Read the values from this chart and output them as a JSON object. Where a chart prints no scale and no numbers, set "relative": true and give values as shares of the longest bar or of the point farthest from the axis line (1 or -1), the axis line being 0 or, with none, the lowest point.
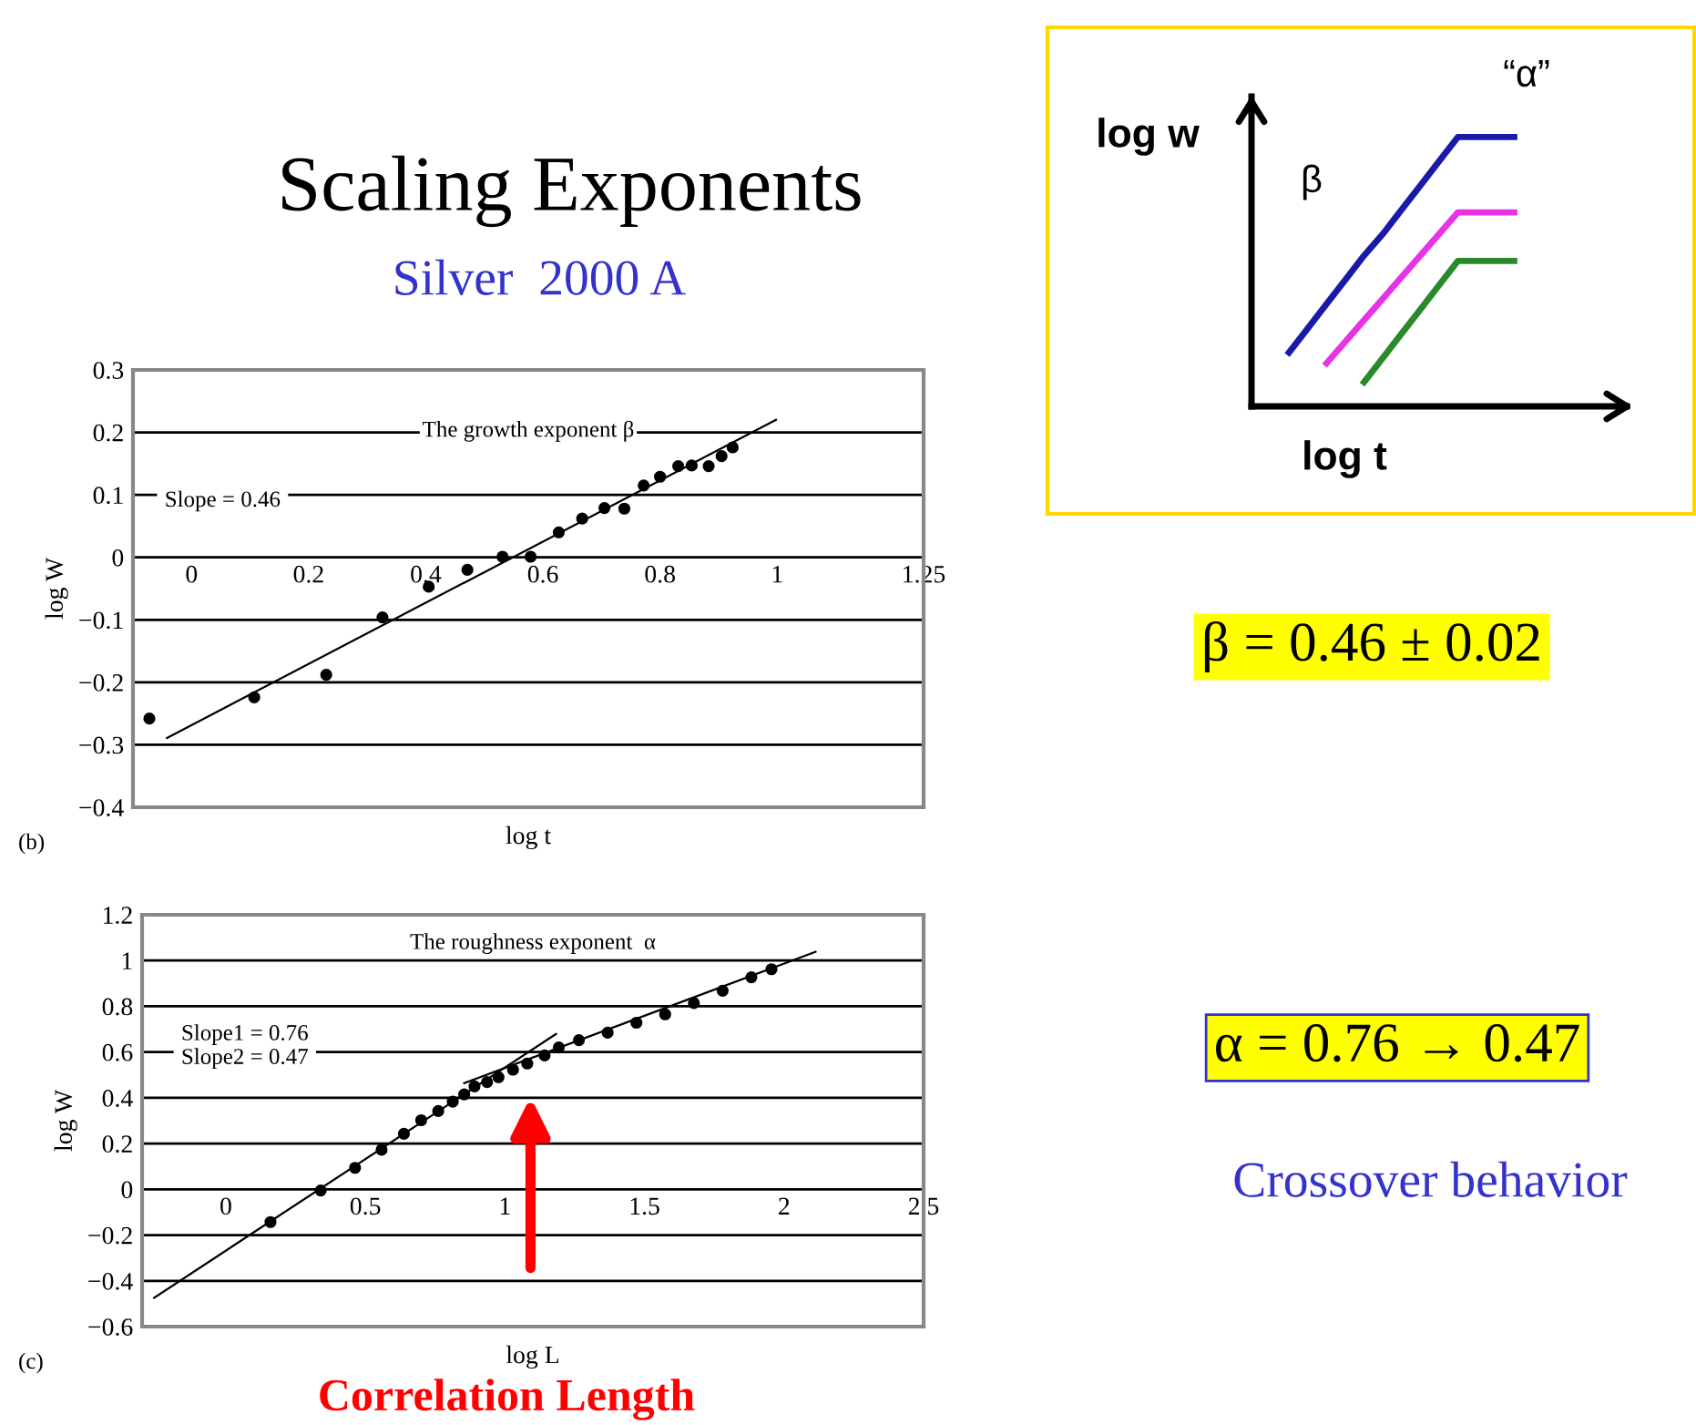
{
  "chart_data": [
    {
      "type": "scatter",
      "title": "Scaling Exponents",
      "subtitle": "Silver  2000 A",
      "xlabel": "log t",
      "ylabel": "log W",
      "annotations": [
        "(b)",
        "The growth exponent β",
        "Slope = 0.46",
        "β = 0.46 ± 0.02"
      ],
      "series": [
        {
          "type": "scatter",
          "color": "#000000",
          "marker": "circle",
          "x": [
            -0.072,
            0.107,
            0.23,
            0.326,
            0.405,
            0.471,
            0.531,
            0.579,
            0.627,
            0.667,
            0.705,
            0.739,
            0.772,
            0.8,
            0.831,
            0.854,
            0.883,
            0.905,
            0.924
          ],
          "values": [
            -0.258,
            -0.224,
            -0.188,
            -0.096,
            -0.047,
            -0.02,
            0.001,
            0.001,
            0.04,
            0.062,
            0.079,
            0.078,
            0.115,
            0.129,
            0.146,
            0.147,
            0.146,
            0.162,
            0.176
          ]
        },
        {
          "type": "line",
          "color": "#000000",
          "marker": "none",
          "line_style": "solid",
          "x": [
            -0.042,
            0.998
          ],
          "values": [
            -0.289,
            0.22
          ]
        }
      ],
      "xlim": [
        -0.1,
        1.25
      ],
      "ylim": [
        -0.4,
        0.3
      ],
      "xticks": [
        0,
        0.2,
        0.4,
        0.6,
        0.8,
        1,
        1.25
      ],
      "yticks": [
        0.3,
        0.2,
        0.1,
        0,
        {
          "value": -0.1,
          "label": "−0.1"
        },
        {
          "value": -0.2,
          "label": "−0.2"
        },
        {
          "value": -0.3,
          "label": "−0.3"
        },
        {
          "value": -0.4,
          "label": "−0.4"
        }
      ],
      "grid": "y"
    },
    {
      "type": "scatter",
      "xlabel": "log L",
      "ylabel": "log W",
      "annotations": [
        "(c)",
        "The roughness exponent  α",
        "Slope1 = 0.76\nSlope2 = 0.47",
        "α = 0.76 → 0.47",
        "Crossover behavior",
        "Correlation Length"
      ],
      "series": [
        {
          "type": "scatter",
          "color": "#000000",
          "marker": "circle",
          "x": [
            0.16,
            0.34,
            0.463,
            0.558,
            0.638,
            0.7,
            0.761,
            0.813,
            0.854,
            0.891,
            0.936,
            0.977,
            1.029,
            1.08,
            1.142,
            1.193,
            1.265,
            1.368,
            1.471,
            1.574,
            1.677,
            1.78,
            1.883,
            1.955
          ],
          "values": [
            -0.143,
            -0.005,
            0.094,
            0.173,
            0.243,
            0.302,
            0.342,
            0.383,
            0.415,
            0.45,
            0.469,
            0.49,
            0.523,
            0.55,
            0.585,
            0.62,
            0.652,
            0.685,
            0.728,
            0.765,
            0.814,
            0.868,
            0.927,
            0.962
          ]
        },
        {
          "type": "line",
          "color": "#000000",
          "marker": "none",
          "line_style": "solid",
          "x": [
            -0.257,
            1.183
          ],
          "values": [
            -0.474,
            0.679
          ]
        },
        {
          "type": "line",
          "color": "#000000",
          "marker": "none",
          "line_style": "solid",
          "x": [
            0.854,
            2.113
          ],
          "values": [
            0.464,
            1.038
          ]
        }
      ],
      "xlim": [
        -0.3,
        2.5
      ],
      "ylim": [
        -0.6,
        1.2
      ],
      "xticks": [
        0,
        0.5,
        1,
        1.5,
        2,
        2.5
      ],
      "yticks": [
        1.2,
        1,
        0.8,
        0.6,
        0.4,
        0.2,
        0,
        {
          "value": -0.2,
          "label": "−0.2"
        },
        {
          "value": -0.4,
          "label": "−0.4"
        },
        {
          "value": -0.6,
          "label": "−0.6"
        }
      ],
      "grid": "y"
    },
    {
      "type": "line",
      "relative": true,
      "xlabel": "log t",
      "ylabel": "log w",
      "annotations": [
        "β",
        "“α”"
      ],
      "categories": [
        null,
        null,
        null,
        null,
        null,
        null,
        null,
        null,
        null,
        null,
        null,
        null,
        null
      ],
      "series": [
        {
          "color": "#1a1aa8",
          "values": [
            0.2,
            0.29,
            0.38,
            0.47,
            0.56,
            0.64,
            0.73,
            0.82,
            0.91,
            1,
            1,
            1,
            1
          ]
        },
        {
          "color": "#e633e6",
          "values": [
            null,
            null,
            0.16,
            0.24,
            0.32,
            0.4,
            0.48,
            0.56,
            0.64,
            0.72,
            0.72,
            0.72,
            0.72
          ]
        },
        {
          "color": "#2a8a2a",
          "values": [
            null,
            null,
            null,
            null,
            0.09,
            0.18,
            0.27,
            0.36,
            0.45,
            0.54,
            0.54,
            0.54,
            0.54
          ]
        }
      ]
    }
  ]
}
